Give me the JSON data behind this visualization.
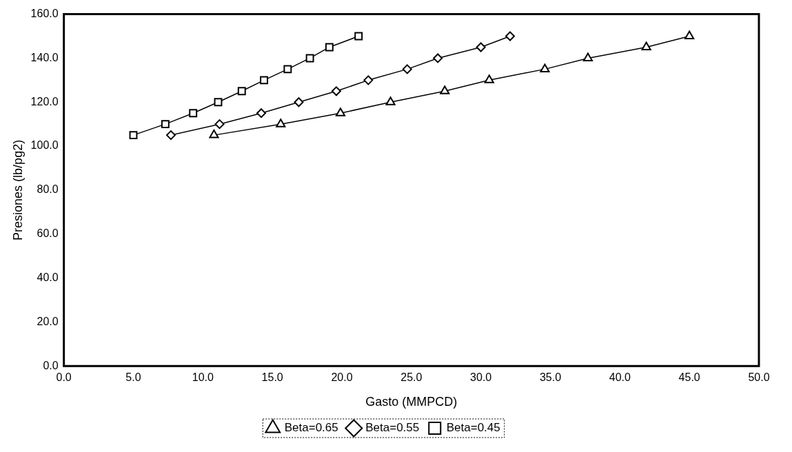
{
  "chart_data": {
    "type": "line",
    "xlabel": "Gasto (MMPCD)",
    "ylabel": "Presiones (lb/pg2)",
    "legend": "bottom",
    "grid": false,
    "line_style": "solid",
    "xlim": [
      0,
      50
    ],
    "xticks": [
      {
        "value": 0,
        "label": "0.0"
      },
      {
        "value": 5,
        "label": "5.0"
      },
      {
        "value": 10,
        "label": "10.0"
      },
      {
        "value": 15,
        "label": "15.0"
      },
      {
        "value": 20,
        "label": "20.0"
      },
      {
        "value": 25,
        "label": "25.0"
      },
      {
        "value": 30,
        "label": "30.0"
      },
      {
        "value": 35,
        "label": "35.0"
      },
      {
        "value": 40,
        "label": "40.0"
      },
      {
        "value": 45,
        "label": "45.0"
      },
      {
        "value": 50,
        "label": "50.0"
      }
    ],
    "ylim": [
      0,
      160
    ],
    "yticks": [
      {
        "value": 0,
        "label": "0.0"
      },
      {
        "value": 20,
        "label": "20.0"
      },
      {
        "value": 40,
        "label": "40.0"
      },
      {
        "value": 60,
        "label": "60.0"
      },
      {
        "value": 80,
        "label": "80.0"
      },
      {
        "value": 100,
        "label": "100.0"
      },
      {
        "value": 120,
        "label": "120.0"
      },
      {
        "value": 140,
        "label": "140.0"
      },
      {
        "value": 160,
        "label": "160.0"
      }
    ],
    "series": [
      {
        "name": "Beta=0.65",
        "color": "#000000",
        "marker": "triangle",
        "x": [
          10.8,
          15.6,
          19.9,
          23.5,
          27.4,
          30.6,
          34.6,
          37.7,
          41.9,
          45.0
        ],
        "values": [
          105,
          110,
          115,
          120,
          125,
          130,
          135,
          140,
          145,
          150
        ]
      },
      {
        "name": "Beta=0.55",
        "color": "#000000",
        "marker": "diamond",
        "x": [
          7.7,
          11.2,
          14.2,
          16.9,
          19.6,
          21.9,
          24.7,
          26.9,
          30.0,
          32.1
        ],
        "values": [
          105,
          110,
          115,
          120,
          125,
          130,
          135,
          140,
          145,
          150
        ]
      },
      {
        "name": "Beta=0.45",
        "color": "#000000",
        "marker": "square",
        "x": [
          5.0,
          7.3,
          9.3,
          11.1,
          12.8,
          14.4,
          16.1,
          17.7,
          19.1,
          21.2
        ],
        "values": [
          105,
          110,
          115,
          120,
          125,
          130,
          135,
          140,
          145,
          150
        ]
      }
    ]
  }
}
